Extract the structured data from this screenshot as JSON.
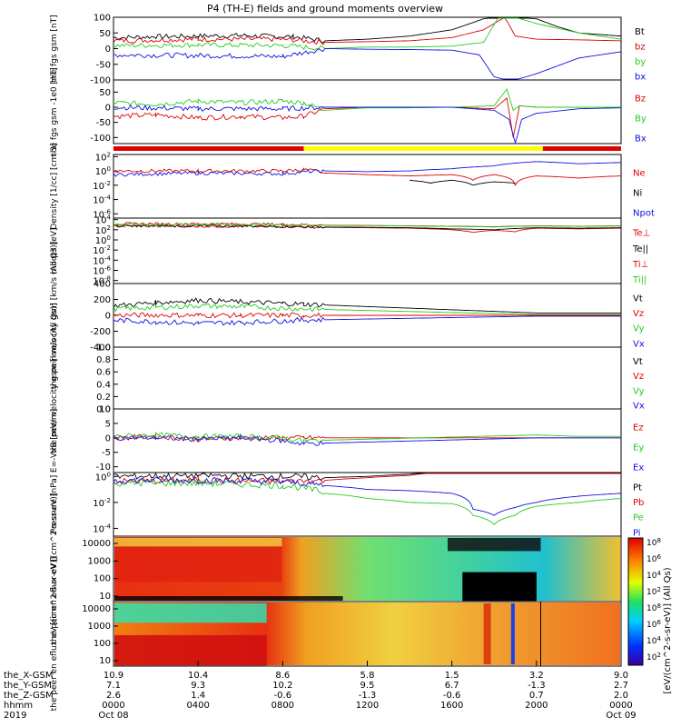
{
  "title": "P4 (TH-E) fields and ground moments overview",
  "time_axis": {
    "tick_times": [
      "0000",
      "0400",
      "0800",
      "1200",
      "1600",
      "2000",
      "0000"
    ],
    "tick_dates": [
      "Oct 08",
      "",
      "",
      "",
      "",
      "",
      "Oct 09"
    ],
    "row_labels": [
      "the_X-GSM",
      "the_Y-GSM",
      "the_Z-GSM",
      "hhmm",
      "2019"
    ],
    "x_gsm": [
      "10.9",
      "10.4",
      "8.6",
      "5.8",
      "1.5",
      "3.2",
      "9.0"
    ],
    "y_gsm": [
      "7.1",
      "9.3",
      "10.2",
      "9.5",
      "6.7",
      "-1.3",
      "2.7"
    ],
    "z_gsm": [
      "2.6",
      "1.4",
      "-0.6",
      "-1.3",
      "-0.6",
      "0.7",
      "2.0"
    ]
  },
  "colorbar": {
    "label": "[eV/(cm^2-s-sr-eV)] (All Qs)",
    "ticks": [
      "10^8",
      "10^6",
      "10^4",
      "10^2",
      "10^8",
      "10^6",
      "10^4",
      "10^2"
    ]
  },
  "colors": {
    "black": "#000000",
    "red": "#e00000",
    "green": "#22cc22",
    "blue": "#1010e0",
    "yellow": "#ffff00"
  },
  "chart_data": [
    {
      "type": "line",
      "ylabel": "the fgs gsm [nT]",
      "ylim": [
        -100,
        100
      ],
      "y_ticks": [
        "100",
        "50",
        "0",
        "-50",
        "-100"
      ],
      "series": [
        {
          "name": "Bt",
          "x_hours": [
            0,
            2,
            4,
            6,
            7,
            8.5,
            10,
            12,
            14,
            16,
            17.5,
            18,
            18.3,
            19,
            20,
            21,
            22,
            24
          ],
          "values": [
            35,
            38,
            40,
            42,
            40,
            38,
            25,
            30,
            40,
            60,
            95,
            100,
            100,
            100,
            95,
            70,
            50,
            40
          ]
        },
        {
          "name": "bz",
          "x_hours": [
            0,
            4,
            8,
            10,
            12,
            14,
            16,
            17.5,
            18.5,
            19,
            20,
            22,
            24
          ],
          "values": [
            25,
            30,
            30,
            20,
            22,
            25,
            35,
            60,
            100,
            40,
            30,
            28,
            25
          ]
        },
        {
          "name": "by",
          "x_hours": [
            0,
            4,
            8,
            10,
            12,
            14,
            16,
            17.5,
            18.2,
            18.6,
            19,
            20,
            22,
            24
          ],
          "values": [
            10,
            12,
            10,
            0,
            5,
            5,
            8,
            20,
            100,
            100,
            100,
            80,
            50,
            30
          ]
        },
        {
          "name": "bx",
          "x_hours": [
            0,
            4,
            8,
            10,
            12,
            14,
            16,
            17.3,
            18,
            18.6,
            19,
            20,
            22,
            24
          ],
          "values": [
            -20,
            -22,
            -25,
            0,
            -2,
            -3,
            -5,
            -20,
            -90,
            -100,
            -100,
            -80,
            -30,
            -10
          ]
        }
      ]
    },
    {
      "type": "line",
      "ylabel": "the fgs gsm -1e0 [nT]",
      "ylim": [
        -120,
        90
      ],
      "y_ticks": [
        "50",
        "0",
        "-50",
        "-100"
      ],
      "series": [
        {
          "name": "Bz",
          "x_hours": [
            0,
            2,
            4,
            6,
            8,
            9,
            10,
            12,
            14,
            16,
            18,
            18.6,
            18.9,
            19.2,
            20,
            22,
            24
          ],
          "values": [
            -30,
            -25,
            -35,
            -30,
            -35,
            -30,
            -5,
            0,
            0,
            0,
            -5,
            30,
            -100,
            5,
            0,
            0,
            0
          ]
        },
        {
          "name": "By",
          "x_hours": [
            0,
            2,
            4,
            6,
            8,
            9,
            10,
            12,
            14,
            16,
            18,
            18.6,
            18.9,
            19.2,
            20,
            22,
            24
          ],
          "values": [
            15,
            10,
            20,
            15,
            20,
            15,
            -10,
            -2,
            -2,
            0,
            5,
            60,
            -10,
            5,
            0,
            0,
            0
          ]
        },
        {
          "name": "Bx",
          "x_hours": [
            0,
            4,
            8,
            10,
            12,
            14,
            16,
            18,
            18.7,
            19,
            19.3,
            20,
            22,
            24
          ],
          "values": [
            0,
            -5,
            -5,
            0,
            0,
            0,
            0,
            -10,
            -40,
            -120,
            -40,
            -20,
            -5,
            -2
          ]
        }
      ]
    },
    {
      "type": "line",
      "ylabel": "Density [1/cc] [cm-3]",
      "y_log": true,
      "y_tick_labels": [
        "10^2",
        "10^0",
        "10^-2",
        "10^-4",
        "10^-6"
      ],
      "series": [
        {
          "name": "Ne",
          "x_hours": [
            0,
            4,
            8,
            9,
            10,
            12,
            14,
            16,
            17,
            18,
            19,
            20,
            22,
            24
          ],
          "values": [
            1,
            1,
            1,
            1.5,
            0.5,
            0.3,
            0.2,
            0.3,
            0.05,
            0.3,
            0.01,
            0.2,
            0.1,
            0.2
          ]
        },
        {
          "name": "Ni",
          "x_hours": [
            14,
            15,
            16,
            17,
            18,
            19
          ],
          "values": [
            0.05,
            0.02,
            0.05,
            0.01,
            0.03,
            0.02
          ]
        },
        {
          "name": "Npot",
          "x_hours": [
            0,
            4,
            8,
            10,
            12,
            14,
            16,
            18,
            20,
            22,
            24
          ],
          "values": [
            0.3,
            0.5,
            0.4,
            1,
            0.8,
            1,
            2,
            5,
            20,
            10,
            15
          ]
        }
      ]
    },
    {
      "type": "line",
      "ylabel": "moqt3 [eV]",
      "y_log": true,
      "y_tick_labels": [
        "10^4",
        "10^2",
        "10^0",
        "10^-2",
        "10^-4",
        "10^-6",
        "10^-8"
      ],
      "series": [
        {
          "name": "Te⊥",
          "x_hours": [
            0,
            4,
            8,
            10,
            12,
            14,
            16,
            17,
            18,
            19,
            20,
            22,
            24
          ],
          "values": [
            500,
            500,
            400,
            300,
            250,
            200,
            100,
            30,
            80,
            40,
            200,
            150,
            200
          ]
        },
        {
          "name": "Te||",
          "x_hours": [
            0,
            4,
            8,
            10,
            12,
            14,
            16,
            18,
            20,
            22,
            24
          ],
          "values": [
            600,
            600,
            500,
            350,
            300,
            250,
            150,
            100,
            250,
            200,
            250
          ]
        },
        {
          "name": "Ti⊥",
          "x_hours": [
            0,
            4,
            8,
            10,
            12,
            14,
            16,
            18,
            20,
            22,
            24
          ],
          "values": [
            1500,
            1500,
            1200,
            800,
            700,
            600,
            500,
            400,
            600,
            500,
            600
          ]
        },
        {
          "name": "Ti||",
          "x_hours": [
            0,
            4,
            8,
            10,
            12,
            14,
            16,
            18,
            20,
            22,
            24
          ],
          "values": [
            1200,
            1200,
            1000,
            700,
            650,
            550,
            450,
            350,
            550,
            450,
            550
          ]
        }
      ]
    },
    {
      "type": "line",
      "ylabel": "the peir velocity gsm [km/s (All Qs)]",
      "ylim": [
        -400,
        400
      ],
      "y_ticks": [
        "400",
        "200",
        "0",
        "-200",
        "-400"
      ],
      "series": [
        {
          "name": "Vt",
          "x_hours": [
            0,
            2,
            4,
            6,
            8,
            9,
            20,
            22,
            24
          ],
          "values": [
            120,
            160,
            190,
            170,
            150,
            140,
            30,
            30,
            30
          ]
        },
        {
          "name": "Vz",
          "x_hours": [
            0,
            2,
            4,
            6,
            8,
            9,
            20,
            22,
            24
          ],
          "values": [
            0,
            5,
            0,
            0,
            0,
            0,
            0,
            0,
            0
          ]
        },
        {
          "name": "Vy",
          "x_hours": [
            0,
            2,
            4,
            6,
            8,
            9,
            20,
            22,
            24
          ],
          "values": [
            80,
            100,
            120,
            110,
            90,
            80,
            10,
            10,
            10
          ]
        },
        {
          "name": "Vx",
          "x_hours": [
            0,
            2,
            4,
            6,
            8,
            9,
            20,
            22,
            24
          ],
          "values": [
            -60,
            -80,
            -100,
            -90,
            -70,
            -60,
            -10,
            -10,
            -10
          ]
        }
      ]
    },
    {
      "type": "line",
      "ylabel": "the peer velocity gsm [km/s (All Qs)]",
      "ylim": [
        0,
        1
      ],
      "y_ticks": [
        "1.0",
        "0.8",
        "0.6",
        "0.4",
        "0.2",
        "0.0"
      ],
      "series": [
        {
          "name": "Vt",
          "x_hours": [],
          "values": []
        },
        {
          "name": "Vz",
          "x_hours": [],
          "values": []
        },
        {
          "name": "Vy",
          "x_hours": [],
          "values": []
        },
        {
          "name": "Vx",
          "x_hours": [],
          "values": []
        }
      ]
    },
    {
      "type": "line",
      "ylabel": "E=-VxB [mV/m]",
      "ylim": [
        -12,
        10
      ],
      "y_ticks": [
        "10",
        "5",
        "0",
        "-5",
        "-10"
      ],
      "series": [
        {
          "name": "Ez",
          "x_hours": [
            0,
            2,
            4,
            6,
            8,
            9,
            20,
            22,
            24
          ],
          "values": [
            0,
            0.5,
            -0.5,
            0,
            0,
            0,
            0,
            0,
            0
          ]
        },
        {
          "name": "Ey",
          "x_hours": [
            0,
            2,
            4,
            6,
            8,
            9,
            20,
            22,
            24
          ],
          "values": [
            0.5,
            1,
            0.5,
            0.5,
            0,
            -1,
            1,
            0.5,
            0.5
          ]
        },
        {
          "name": "Ex",
          "x_hours": [
            0,
            2,
            4,
            6,
            8,
            9,
            20,
            22,
            24
          ],
          "values": [
            0,
            0,
            -0.5,
            0,
            -1,
            -2,
            0,
            0,
            0
          ]
        }
      ]
    },
    {
      "type": "line",
      "ylabel": "Pressure [nPa]",
      "y_log": true,
      "y_tick_labels": [
        "10^0",
        "10^-2",
        "10^-4"
      ],
      "series": [
        {
          "name": "Pt",
          "x_hours": [
            0,
            4,
            8,
            10,
            12,
            14,
            16,
            17,
            18,
            19,
            20,
            21,
            22,
            24
          ],
          "values": [
            1,
            1.2,
            1,
            0.8,
            1,
            1.5,
            3,
            8,
            20,
            30,
            20,
            8,
            4,
            2
          ]
        },
        {
          "name": "Pb",
          "x_hours": [
            0,
            4,
            8,
            10,
            12,
            14,
            16,
            18,
            20,
            22,
            24
          ],
          "values": [
            0.4,
            0.5,
            0.4,
            0.5,
            0.8,
            1.2,
            2.5,
            10,
            15,
            4,
            2
          ]
        },
        {
          "name": "Pe",
          "x_hours": [
            0,
            4,
            8,
            10,
            12,
            14,
            16,
            17,
            18,
            19,
            20,
            22,
            24
          ],
          "values": [
            0.3,
            0.3,
            0.2,
            0.05,
            0.02,
            0.01,
            0.008,
            0.001,
            0.0002,
            0.001,
            0.005,
            0.01,
            0.02
          ]
        },
        {
          "name": "Pi",
          "x_hours": [
            0,
            4,
            8,
            10,
            12,
            14,
            16,
            17,
            18,
            19,
            20,
            22,
            24
          ],
          "values": [
            0.5,
            0.5,
            0.4,
            0.2,
            0.1,
            0.08,
            0.05,
            0.003,
            0.001,
            0.004,
            0.01,
            0.03,
            0.05
          ]
        }
      ]
    },
    {
      "type": "heatmap",
      "ylabel": "the peir en eflux eV [(cm^2-s-sr-eV)]",
      "y_tick_labels": [
        "10000",
        "1000",
        "100",
        "10"
      ]
    },
    {
      "type": "heatmap",
      "ylabel": "the peer en eflux eV [(cm^2-s-sr-eV)]",
      "y_tick_labels": [
        "10000",
        "1000",
        "100",
        "10"
      ]
    }
  ]
}
